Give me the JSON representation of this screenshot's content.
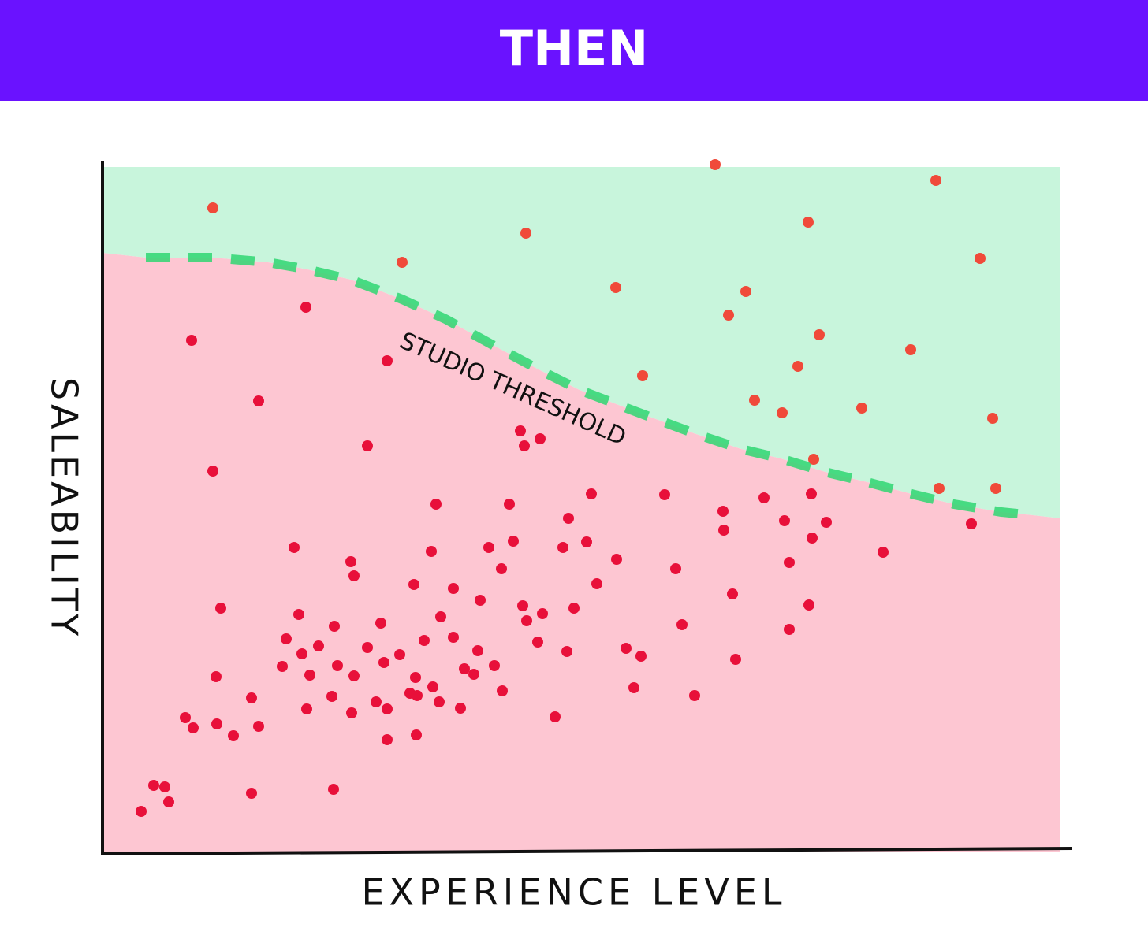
{
  "chart_data": {
    "type": "scatter",
    "title": "THEN",
    "xlabel": "EXPERIENCE LEVEL",
    "ylabel": "SALEABILITY",
    "annotation": "STUDIO THRESHOLD",
    "xlim": [
      0,
      1215
    ],
    "ylim": [
      0,
      880
    ],
    "area_colors": {
      "above": "#c8f5dc",
      "below": "#fdc6d2"
    },
    "threshold": {
      "color": "#2fd672",
      "x": [
        55,
        140,
        210,
        260,
        315,
        380,
        435,
        495,
        555,
        605,
        670,
        750,
        810,
        860,
        920,
        970,
        1030,
        1080,
        1140,
        1180
      ],
      "values": [
        755,
        755,
        749,
        740,
        727,
        702,
        677,
        644,
        612,
        587,
        562,
        532,
        512,
        500,
        482,
        470,
        454,
        442,
        432,
        428
      ]
    },
    "series": [
      {
        "color": "#f04a3a",
        "x": [
          140,
          537,
          380,
          777,
          1057,
          895,
          1113,
          651,
          816,
          794,
          909,
          1025,
          882,
          685,
          827,
          862,
          963,
          1129,
          902,
          1061,
          1133
        ],
        "values": [
          818,
          786,
          749,
          873,
          853,
          800,
          754,
          717,
          712,
          682,
          657,
          638,
          617,
          605,
          574,
          558,
          564,
          551,
          499,
          462,
          462
        ]
      },
      {
        "color": "#e8103a",
        "x": [
          258,
          113,
          361,
          198,
          530,
          555,
          535,
          336,
          140,
          423,
          516,
          620,
          713,
          839,
          899,
          787,
          865,
          918,
          788,
          1102,
          591,
          521,
          614,
          243,
          417,
          490,
          584,
          900,
          990,
          652,
          315,
          319,
          506,
          727,
          871,
          395,
          445,
          627,
          799,
          479,
          150,
          249,
          429,
          533,
          558,
          598,
          538,
          896,
          294,
          353,
          735,
          871,
          233,
          274,
          336,
          408,
          445,
          552,
          253,
          377,
          476,
          589,
          664,
          683,
          803,
          228,
          298,
          357,
          459,
          497,
          263,
          319,
          471,
          144,
          397,
          419,
          507,
          674,
          390,
          399,
          291,
          347,
          427,
          189,
          259,
          316,
          361,
          454,
          751,
          574,
          105,
          145,
          115,
          166,
          198,
          361,
          398,
          65,
          79,
          84,
          49,
          189,
          293
        ],
        "values": [
          692,
          650,
          624,
          573,
          535,
          525,
          516,
          516,
          484,
          442,
          442,
          455,
          454,
          450,
          455,
          433,
          421,
          419,
          409,
          417,
          424,
          395,
          394,
          387,
          382,
          387,
          387,
          399,
          381,
          372,
          369,
          351,
          360,
          360,
          368,
          340,
          335,
          341,
          328,
          320,
          310,
          302,
          299,
          313,
          303,
          310,
          294,
          314,
          287,
          291,
          289,
          283,
          271,
          262,
          260,
          269,
          273,
          267,
          252,
          251,
          256,
          255,
          259,
          249,
          245,
          236,
          237,
          241,
          233,
          237,
          225,
          224,
          226,
          223,
          222,
          210,
          205,
          209,
          202,
          199,
          198,
          191,
          191,
          196,
          182,
          177,
          182,
          183,
          199,
          172,
          171,
          163,
          158,
          148,
          160,
          143,
          149,
          85,
          83,
          64,
          52,
          75,
          80
        ]
      }
    ]
  }
}
